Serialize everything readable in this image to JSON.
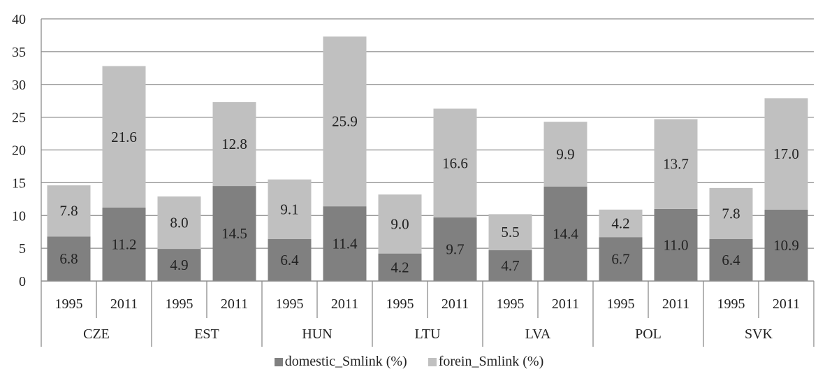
{
  "chart_data": {
    "type": "bar",
    "stacked": true,
    "groups": [
      {
        "name": "CZE",
        "years": [
          "1995",
          "2011"
        ]
      },
      {
        "name": "EST",
        "years": [
          "1995",
          "2011"
        ]
      },
      {
        "name": "HUN",
        "years": [
          "1995",
          "2011"
        ]
      },
      {
        "name": "LTU",
        "years": [
          "1995",
          "2011"
        ]
      },
      {
        "name": "LVA",
        "years": [
          "1995",
          "2011"
        ]
      },
      {
        "name": "POL",
        "years": [
          "1995",
          "2011"
        ]
      },
      {
        "name": "SVK",
        "years": [
          "1995",
          "2011"
        ]
      }
    ],
    "categories": [
      "CZE 1995",
      "CZE 2011",
      "EST 1995",
      "EST 2011",
      "HUN 1995",
      "HUN 2011",
      "LTU 1995",
      "LTU 2011",
      "LVA 1995",
      "LVA 2011",
      "POL 1995",
      "POL 2011",
      "SVK 1995",
      "SVK 2011"
    ],
    "series": [
      {
        "name": "domestic_Smlink (%)",
        "color": "#808080",
        "values": [
          6.8,
          11.2,
          4.9,
          14.5,
          6.4,
          11.4,
          4.2,
          9.7,
          4.7,
          14.4,
          6.7,
          11.0,
          6.4,
          10.9
        ],
        "labels": [
          "6.8",
          "11.2",
          "4.9",
          "14.5",
          "6.4",
          "11.4",
          "4.2",
          "9.7",
          "4.7",
          "14.4",
          "6.7",
          "11.0",
          "6.4",
          "10.9"
        ]
      },
      {
        "name": "forein_Smlink (%)",
        "color": "#c0c0c0",
        "values": [
          7.8,
          21.6,
          8.0,
          12.8,
          9.1,
          25.9,
          9.0,
          16.6,
          5.5,
          9.9,
          4.2,
          13.7,
          7.8,
          17.0
        ],
        "labels": [
          "7.8",
          "21.6",
          "8.0",
          "12.8",
          "9.1",
          "25.9",
          "9.0",
          "16.6",
          "5.5",
          "9.9",
          "4.2",
          "13.7",
          "7.8",
          "17.0"
        ]
      }
    ],
    "yticks": [
      "0",
      "5",
      "10",
      "15",
      "20",
      "25",
      "30",
      "35",
      "40"
    ],
    "ylim": [
      0,
      40
    ],
    "grid": true,
    "legend_position": "bottom"
  }
}
